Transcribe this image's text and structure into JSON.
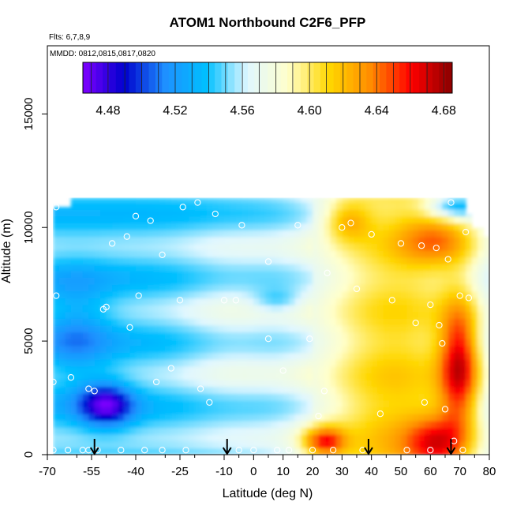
{
  "chart_data": {
    "type": "heatmap",
    "title": "ATOM1 Northbound C2F6_PFP",
    "annotations": {
      "flights": "Flts: 6,7,8,9",
      "dates": "MMDD: 0812,0815,0817,0820"
    },
    "xlabel": "Latitude (deg N)",
    "ylabel": "Altitude (m)",
    "xlim": [
      -70,
      80
    ],
    "ylim": [
      0,
      18000
    ],
    "x_ticks": [
      -70,
      -55,
      -40,
      -25,
      -10,
      0,
      10,
      20,
      30,
      40,
      50,
      60,
      70,
      80
    ],
    "x_tick_labels": [
      "-70",
      "-55",
      "-40",
      "-25",
      "-10",
      "0",
      "10",
      "20",
      "30",
      "40",
      "50",
      "60",
      "70",
      "80"
    ],
    "minor_x_ticks": [
      -60,
      -50,
      -30,
      -20,
      -5,
      5,
      15,
      25,
      35,
      45,
      55,
      65,
      75
    ],
    "y_ticks": [
      0,
      5000,
      10000,
      15000
    ],
    "y_tick_labels": [
      "0",
      "5000",
      "10000",
      "15000"
    ],
    "colorbar": {
      "range": [
        4.465,
        4.685
      ],
      "ticks": [
        4.48,
        4.52,
        4.56,
        4.6,
        4.64,
        4.68
      ],
      "tick_labels": [
        "4.48",
        "4.52",
        "4.56",
        "4.60",
        "4.64",
        "4.68"
      ],
      "colors": [
        "#7f00ff",
        "#0000cd",
        "#1e90ff",
        "#00bfff",
        "#e0f7ff",
        "#ffffcc",
        "#ffd700",
        "#ff8c00",
        "#ff0000",
        "#8b0000"
      ]
    },
    "arrows_lat": [
      -54,
      -9,
      39,
      67
    ],
    "samples": [
      [
        -68,
        200
      ],
      [
        -68,
        3200
      ],
      [
        -67,
        7000
      ],
      [
        -67,
        10900
      ],
      [
        -63,
        200
      ],
      [
        -62,
        3400
      ],
      [
        -58,
        200
      ],
      [
        -56,
        2900
      ],
      [
        -56,
        200
      ],
      [
        -54,
        2800
      ],
      [
        -53,
        200
      ],
      [
        -50,
        6500
      ],
      [
        -51,
        6400
      ],
      [
        -48,
        9300
      ],
      [
        -45,
        200
      ],
      [
        -43,
        9600
      ],
      [
        -42,
        5600
      ],
      [
        -40,
        10500
      ],
      [
        -39,
        7000
      ],
      [
        -37,
        200
      ],
      [
        -35,
        10300
      ],
      [
        -33,
        3200
      ],
      [
        -31,
        200
      ],
      [
        -31,
        8800
      ],
      [
        -28,
        3800
      ],
      [
        -25,
        6800
      ],
      [
        -24,
        10900
      ],
      [
        -23,
        200
      ],
      [
        -19,
        11100
      ],
      [
        -18,
        2900
      ],
      [
        -15,
        2300
      ],
      [
        -13,
        10600
      ],
      [
        -10,
        6800
      ],
      [
        -6,
        6800
      ],
      [
        -5,
        200
      ],
      [
        -4,
        10100
      ],
      [
        0,
        200
      ],
      [
        5,
        5100
      ],
      [
        5,
        8500
      ],
      [
        8,
        200
      ],
      [
        10,
        3700
      ],
      [
        12,
        200
      ],
      [
        15,
        10100
      ],
      [
        19,
        5100
      ],
      [
        20,
        200
      ],
      [
        22,
        1700
      ],
      [
        24,
        2800
      ],
      [
        25,
        8000
      ],
      [
        27,
        200
      ],
      [
        30,
        10000
      ],
      [
        33,
        10200
      ],
      [
        35,
        7300
      ],
      [
        37,
        200
      ],
      [
        40,
        9700
      ],
      [
        43,
        1800
      ],
      [
        47,
        6800
      ],
      [
        50,
        9300
      ],
      [
        52,
        200
      ],
      [
        55,
        5800
      ],
      [
        57,
        9200
      ],
      [
        58,
        2300
      ],
      [
        60,
        6600
      ],
      [
        60,
        200
      ],
      [
        62,
        9100
      ],
      [
        63,
        5700
      ],
      [
        64,
        4900
      ],
      [
        65,
        2000
      ],
      [
        66,
        8600
      ],
      [
        67,
        11100
      ],
      [
        68,
        600
      ],
      [
        70,
        7000
      ],
      [
        71,
        200
      ],
      [
        72,
        9800
      ],
      [
        73,
        6900
      ]
    ]
  }
}
